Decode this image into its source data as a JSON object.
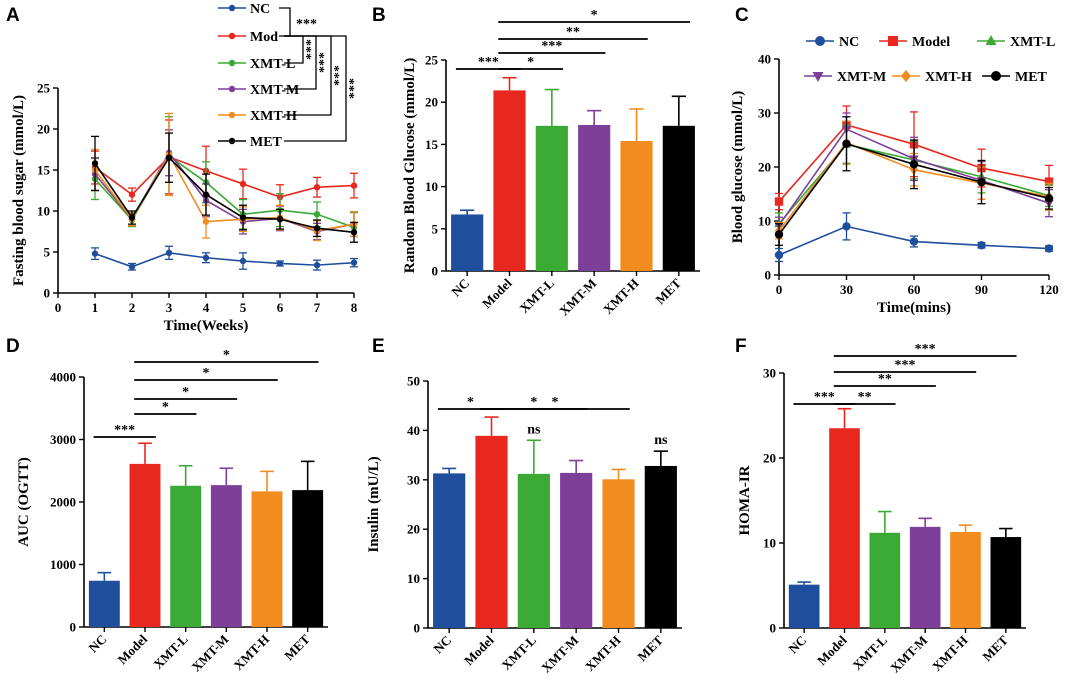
{
  "colors": {
    "NC": "#1f4e9c",
    "Model": "#e8281f",
    "XMT-L": "#3aaa35",
    "XMT-M": "#7e3f98",
    "XMT-H": "#f28c1e",
    "MET": "#000000"
  },
  "chart_data": [
    {
      "panel": "A",
      "type": "line",
      "title": "",
      "xlabel": "Time(Weeks)",
      "ylabel": "Fasting blood sugar (mmol/L)",
      "xlim": [
        0,
        8
      ],
      "ylim": [
        0,
        25
      ],
      "xticks": [
        "0",
        "1",
        "2",
        "3",
        "4",
        "5",
        "6",
        "7",
        "8"
      ],
      "yticks": [
        "0",
        "5",
        "10",
        "15",
        "20",
        "25"
      ],
      "x": [
        1,
        2,
        3,
        4,
        5,
        6,
        7,
        8
      ],
      "legend_location": "top-right",
      "series": [
        {
          "name": "NC",
          "color_key": "NC",
          "marker": "circle",
          "values": [
            4.8,
            3.2,
            4.9,
            4.3,
            3.9,
            3.6,
            3.4,
            3.7
          ],
          "errors": [
            0.7,
            0.4,
            0.8,
            0.6,
            1.0,
            0.3,
            0.6,
            0.5
          ]
        },
        {
          "name": "Mod",
          "color_key": "Model",
          "marker": "circle",
          "values": [
            15.3,
            12.0,
            16.6,
            14.9,
            13.3,
            11.7,
            12.9,
            13.1
          ],
          "errors": [
            2.0,
            0.8,
            4.5,
            3.0,
            1.8,
            1.5,
            1.2,
            1.5
          ]
        },
        {
          "name": "XMT-L",
          "color_key": "XMT-L",
          "marker": "circle",
          "values": [
            13.9,
            8.9,
            16.7,
            13.5,
            9.6,
            10.1,
            9.6,
            8.0
          ],
          "errors": [
            2.5,
            0.8,
            4.8,
            2.5,
            1.8,
            2.0,
            1.5,
            1.8
          ]
        },
        {
          "name": "XMT-M",
          "color_key": "XMT-M",
          "marker": "circle",
          "values": [
            14.5,
            9.0,
            17.1,
            11.3,
            8.7,
            9.1,
            7.5,
            8.4
          ],
          "errors": [
            2.0,
            0.8,
            2.8,
            2.0,
            1.5,
            1.5,
            1.0,
            1.5
          ]
        },
        {
          "name": "XMT-H",
          "color_key": "XMT-H",
          "marker": "circle",
          "values": [
            15.0,
            9.0,
            16.9,
            8.7,
            9.0,
            9.2,
            7.6,
            8.4
          ],
          "errors": [
            2.5,
            0.8,
            5.0,
            2.0,
            1.5,
            1.5,
            1.2,
            1.5
          ]
        },
        {
          "name": "MET",
          "color_key": "MET",
          "marker": "circle",
          "values": [
            15.8,
            9.2,
            16.5,
            12.0,
            9.2,
            9.0,
            7.9,
            7.4
          ],
          "errors": [
            3.3,
            0.8,
            3.0,
            2.5,
            1.5,
            1.2,
            1.0,
            1.2
          ]
        }
      ],
      "significance": [
        {
          "pair": [
            "NC",
            "Mod"
          ],
          "label": "***"
        },
        {
          "pair": [
            "Mod",
            "XMT-L"
          ],
          "label": "***"
        },
        {
          "pair": [
            "Mod",
            "XMT-M"
          ],
          "label": "***"
        },
        {
          "pair": [
            "Mod",
            "XMT-H"
          ],
          "label": "***"
        },
        {
          "pair": [
            "Mod",
            "MET"
          ],
          "label": "***"
        }
      ]
    },
    {
      "panel": "B",
      "type": "bar",
      "title": "",
      "xlabel": "",
      "ylabel": "Random Blood Glucose (mmol/L)",
      "ylim": [
        0,
        25
      ],
      "yticks": [
        "0",
        "5",
        "10",
        "15",
        "20",
        "25"
      ],
      "categories": [
        "NC",
        "Model",
        "XMT-L",
        "XMT-M",
        "XMT-H",
        "MET"
      ],
      "values": [
        6.7,
        21.4,
        17.2,
        17.3,
        15.4,
        17.2
      ],
      "errors": [
        0.5,
        1.5,
        4.3,
        1.7,
        3.8,
        3.5
      ],
      "significance": [
        {
          "from": "NC",
          "to": "Model",
          "label": "***"
        },
        {
          "from": "Model",
          "to": "XMT-L",
          "label": "*"
        },
        {
          "from": "Model",
          "to": "XMT-M",
          "label": "***"
        },
        {
          "from": "Model",
          "to": "XMT-H",
          "label": "**"
        },
        {
          "from": "Model",
          "to": "MET",
          "label": "*"
        }
      ]
    },
    {
      "panel": "C",
      "type": "line",
      "title": "",
      "xlabel": "Time(mins)",
      "ylabel": "Blood glucose (mmol/L)",
      "xlim": [
        0,
        120
      ],
      "ylim": [
        0,
        40
      ],
      "xticks": [
        "0",
        "30",
        "60",
        "90",
        "120"
      ],
      "yticks": [
        "0",
        "10",
        "20",
        "30",
        "40"
      ],
      "x": [
        0,
        30,
        60,
        90,
        120
      ],
      "legend_location": "top",
      "series": [
        {
          "name": "NC",
          "color_key": "NC",
          "marker": "circle",
          "values": [
            3.7,
            9.0,
            6.2,
            5.5,
            4.9
          ],
          "errors": [
            1.2,
            2.5,
            1.0,
            0.5,
            0.5
          ]
        },
        {
          "name": "Model",
          "color_key": "Model",
          "marker": "square",
          "values": [
            13.6,
            27.8,
            24.2,
            19.8,
            17.3
          ],
          "errors": [
            1.5,
            3.5,
            6.0,
            3.5,
            3.0
          ]
        },
        {
          "name": "XMT-L",
          "color_key": "XMT-L",
          "marker": "triangle",
          "values": [
            9.5,
            24.2,
            21.3,
            18.2,
            14.7
          ],
          "errors": [
            2.0,
            3.5,
            3.5,
            3.0,
            2.0
          ]
        },
        {
          "name": "XMT-M",
          "color_key": "XMT-M",
          "marker": "triangle-down",
          "values": [
            9.2,
            27.0,
            21.5,
            17.5,
            13.3
          ],
          "errors": [
            1.5,
            3.0,
            4.0,
            3.5,
            2.5
          ]
        },
        {
          "name": "XMT-H",
          "color_key": "XMT-H",
          "marker": "diamond",
          "values": [
            8.2,
            24.5,
            19.5,
            17.0,
            14.5
          ],
          "errors": [
            1.5,
            4.0,
            3.0,
            3.0,
            2.5
          ]
        },
        {
          "name": "MET",
          "color_key": "MET",
          "marker": "circle",
          "values": [
            7.5,
            24.3,
            20.5,
            17.2,
            14.2
          ],
          "errors": [
            2.0,
            5.0,
            4.5,
            4.0,
            2.0
          ]
        }
      ]
    },
    {
      "panel": "D",
      "type": "bar",
      "title": "",
      "xlabel": "",
      "ylabel": "AUC (OGTT)",
      "ylim": [
        0,
        4000
      ],
      "yticks": [
        "0",
        "1000",
        "2000",
        "3000",
        "4000"
      ],
      "categories": [
        "NC",
        "Model",
        "XMT-L",
        "XMT-M",
        "XMT-H",
        "MET"
      ],
      "values": [
        740,
        2610,
        2260,
        2270,
        2170,
        2190
      ],
      "errors": [
        130,
        330,
        320,
        270,
        320,
        460
      ],
      "significance": [
        {
          "from": "NC",
          "to": "Model",
          "label": "***"
        },
        {
          "from": "Model",
          "to": "XMT-L",
          "label": "*"
        },
        {
          "from": "Model",
          "to": "XMT-M",
          "label": "*"
        },
        {
          "from": "Model",
          "to": "XMT-H",
          "label": "*"
        },
        {
          "from": "Model",
          "to": "MET",
          "label": "*"
        }
      ]
    },
    {
      "panel": "E",
      "type": "bar",
      "title": "",
      "xlabel": "",
      "ylabel": "Insulin (mU/L)",
      "ylim": [
        0,
        50
      ],
      "yticks": [
        "0",
        "10",
        "20",
        "30",
        "40",
        "50"
      ],
      "categories": [
        "NC",
        "Model",
        "XMT-L",
        "XMT-M",
        "XMT-H",
        "MET"
      ],
      "values": [
        31.3,
        38.9,
        31.2,
        31.4,
        30.1,
        32.8
      ],
      "errors": [
        1.0,
        3.8,
        6.8,
        2.5,
        2.0,
        3.0
      ],
      "annotations": [
        {
          "category": "XMT-L",
          "label": "ns"
        },
        {
          "category": "MET",
          "label": "ns"
        }
      ],
      "significance": [
        {
          "from": "NC",
          "to": "Model",
          "label": "*"
        },
        {
          "from": "Model",
          "to": "XMT-M",
          "label": "*"
        },
        {
          "from": "Model",
          "to": "XMT-H",
          "label": "*"
        }
      ]
    },
    {
      "panel": "F",
      "type": "bar",
      "title": "",
      "xlabel": "",
      "ylabel": "HOMA-IR",
      "ylim": [
        0,
        30
      ],
      "yticks": [
        "0",
        "10",
        "20",
        "30"
      ],
      "categories": [
        "NC",
        "Model",
        "XMT-L",
        "XMT-M",
        "XMT-H",
        "MET"
      ],
      "values": [
        5.1,
        23.5,
        11.2,
        11.9,
        11.3,
        10.7
      ],
      "errors": [
        0.3,
        2.3,
        2.5,
        1.0,
        0.8,
        1.0
      ],
      "significance": [
        {
          "from": "NC",
          "to": "Model",
          "label": "***"
        },
        {
          "from": "Model",
          "to": "XMT-L",
          "label": "**"
        },
        {
          "from": "Model",
          "to": "XMT-M",
          "label": "**"
        },
        {
          "from": "Model",
          "to": "XMT-H",
          "label": "***"
        },
        {
          "from": "Model",
          "to": "MET",
          "label": "***"
        }
      ]
    }
  ]
}
